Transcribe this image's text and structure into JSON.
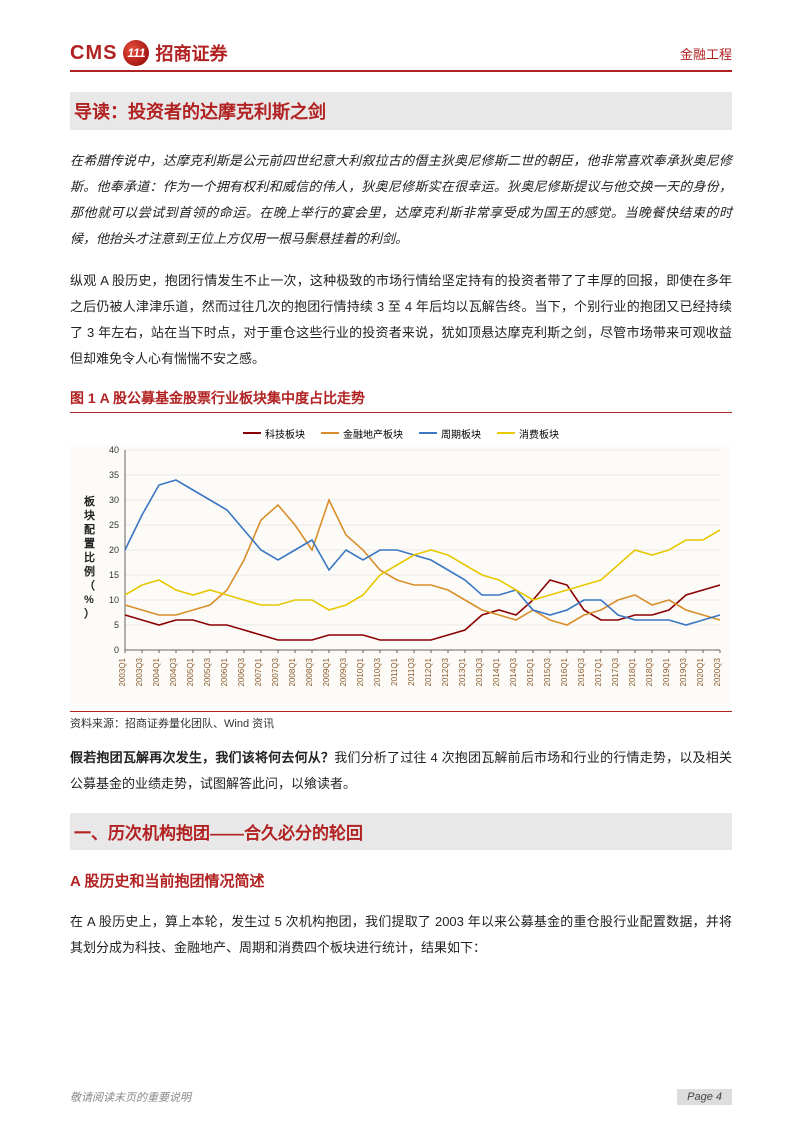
{
  "header": {
    "logo_cms": "CMS",
    "logo_badge": "111",
    "logo_cn": "招商证券",
    "right": "金融工程"
  },
  "intro": {
    "title": "导读：投资者的达摩克利斯之剑",
    "p1": "在希腊传说中，达摩克利斯是公元前四世纪意大利叙拉古的僭主狄奥尼修斯二世的朝臣，他非常喜欢奉承狄奥尼修斯。他奉承道：作为一个拥有权利和威信的伟人，狄奥尼修斯实在很幸运。狄奥尼修斯提议与他交换一天的身份，那他就可以尝试到首领的命运。在晚上举行的宴会里，达摩克利斯非常享受成为国王的感觉。当晚餐快结束的时候，他抬头才注意到王位上方仅用一根马鬃悬挂着的利剑。",
    "p2": "纵观 A 股历史，抱团行情发生不止一次，这种极致的市场行情给坚定持有的投资者带了了丰厚的回报，即使在多年之后仍被人津津乐道，然而过往几次的抱团行情持续 3 至 4 年后均以瓦解告终。当下，个别行业的抱团又已经持续了 3 年左右，站在当下时点，对于重仓这些行业的投资者来说，犹如顶悬达摩克利斯之剑，尽管市场带来可观收益但却难免令人心有惴惴不安之感。"
  },
  "chart": {
    "title": "图 1 A 股公募基金股票行业板块集中度占比走势",
    "source": "资料来源：招商证券量化团队、Wind 资讯",
    "ylabel": "板块配置比例（%）",
    "ylim": [
      0,
      40
    ],
    "ytick_step": 5,
    "background_color": "#fcfbf8",
    "grid_color": "#d8d8d8",
    "axis_color": "#666666",
    "label_fontsize": 9,
    "x_labels": [
      "2003Q1",
      "2003Q3",
      "2004Q1",
      "2004Q3",
      "2005Q1",
      "2005Q3",
      "2006Q1",
      "2006Q3",
      "2007Q1",
      "2007Q3",
      "2008Q1",
      "2008Q3",
      "2009Q1",
      "2009Q3",
      "2010Q1",
      "2010Q3",
      "2011Q1",
      "2011Q3",
      "2012Q1",
      "2012Q3",
      "2013Q1",
      "2013Q3",
      "2014Q1",
      "2014Q3",
      "2015Q1",
      "2015Q3",
      "2016Q1",
      "2016Q3",
      "2017Q1",
      "2017Q3",
      "2018Q1",
      "2018Q3",
      "2019Q1",
      "2019Q3",
      "2020Q1",
      "2020Q3"
    ],
    "series": [
      {
        "name": "科技板块",
        "color": "#8b0000",
        "values": [
          7,
          6,
          5,
          6,
          6,
          5,
          5,
          4,
          3,
          2,
          2,
          2,
          3,
          3,
          3,
          2,
          2,
          2,
          2,
          3,
          4,
          7,
          8,
          7,
          10,
          14,
          13,
          8,
          6,
          6,
          7,
          7,
          8,
          11,
          12,
          13
        ]
      },
      {
        "name": "金融地产板块",
        "color": "#d98e2b",
        "values": [
          9,
          8,
          7,
          7,
          8,
          9,
          12,
          18,
          26,
          29,
          25,
          20,
          30,
          23,
          20,
          16,
          14,
          13,
          13,
          12,
          10,
          8,
          7,
          6,
          8,
          6,
          5,
          7,
          8,
          10,
          11,
          9,
          10,
          8,
          7,
          6
        ]
      },
      {
        "name": "周期板块",
        "color": "#3a76c2",
        "values": [
          20,
          27,
          33,
          34,
          32,
          30,
          28,
          24,
          20,
          18,
          20,
          22,
          16,
          20,
          18,
          20,
          20,
          19,
          18,
          16,
          14,
          11,
          11,
          12,
          8,
          7,
          8,
          10,
          10,
          7,
          6,
          6,
          6,
          5,
          6,
          7
        ]
      },
      {
        "name": "消费板块",
        "color": "#e8c800",
        "values": [
          11,
          13,
          14,
          12,
          11,
          12,
          11,
          10,
          9,
          9,
          10,
          10,
          8,
          9,
          11,
          15,
          17,
          19,
          20,
          19,
          17,
          15,
          14,
          12,
          10,
          11,
          12,
          13,
          14,
          17,
          20,
          19,
          20,
          22,
          22,
          24
        ]
      }
    ]
  },
  "after_chart": {
    "lead": "假若抱团瓦解再次发生，我们该将何去何从？",
    "rest": "我们分析了过往 4 次抱团瓦解前后市场和行业的行情走势，以及相关公募基金的业绩走势，试图解答此问，以飨读者。"
  },
  "section1": {
    "title": "一、历次机构抱团——合久必分的轮回",
    "subhead": "A 股历史和当前抱团情况简述",
    "p1": "在 A 股历史上，算上本轮，发生过 5 次机构抱团，我们提取了 2003 年以来公募基金的重仓股行业配置数据，并将其划分成为科技、金融地产、周期和消费四个板块进行统计，结果如下："
  },
  "footer": {
    "note": "敬请阅读末页的重要说明",
    "page": "Page 4"
  }
}
